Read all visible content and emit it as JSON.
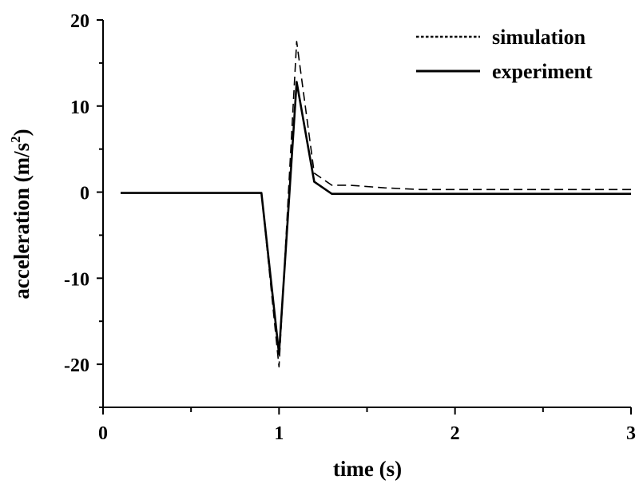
{
  "chart_data": {
    "type": "line",
    "title": "",
    "xlabel": "time (s)",
    "ylabel": "acceleration (m/s",
    "ylabel_superscript": "2",
    "ylabel_suffix": ")",
    "xlim": [
      0,
      3
    ],
    "ylim": [
      -25,
      20
    ],
    "xticks": [
      0,
      1,
      2,
      3
    ],
    "xtick_labels": [
      "0",
      "1",
      "2",
      "3"
    ],
    "yticks": [
      20,
      10,
      0,
      -10,
      -20
    ],
    "ytick_labels": [
      "20",
      "10",
      "0",
      "-10",
      "-20"
    ],
    "legend_position": "top-right",
    "grid": false,
    "series": [
      {
        "name": "simulation",
        "style": "dashed",
        "x": [
          0.1,
          0.9,
          1.0,
          1.1,
          1.2,
          1.3,
          1.4,
          1.6,
          1.8,
          2.0,
          3.0
        ],
        "y": [
          -0.1,
          -0.1,
          -20.3,
          17.5,
          2.2,
          0.8,
          0.8,
          0.5,
          0.3,
          0.3,
          0.3
        ]
      },
      {
        "name": "experiment",
        "style": "solid",
        "x": [
          0.1,
          0.9,
          1.0,
          1.1,
          1.2,
          1.3,
          3.0
        ],
        "y": [
          -0.1,
          -0.1,
          -18.8,
          12.8,
          1.2,
          -0.2,
          -0.2
        ]
      }
    ]
  }
}
